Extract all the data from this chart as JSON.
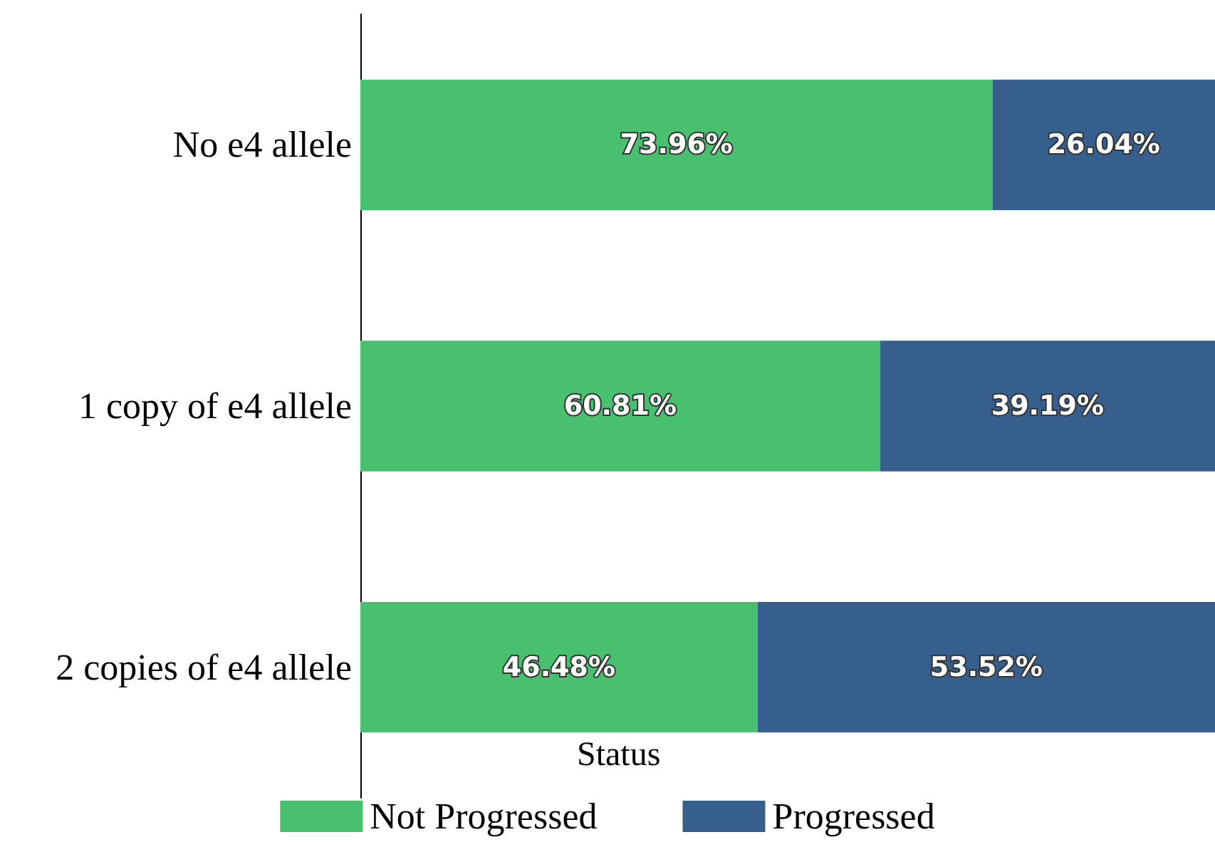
{
  "chart_data": {
    "type": "bar",
    "orientation": "horizontal",
    "stacked": true,
    "categories": [
      "No e4 allele",
      "1 copy of e4 allele",
      "2 copies of e4 allele"
    ],
    "xlim": [
      0,
      100
    ],
    "tick_labels": "y",
    "grid": false,
    "legend": "bottom",
    "legend_title": "Status",
    "series": [
      {
        "name": "Not Progressed",
        "color": "#48c06f",
        "values": [
          73.96,
          60.81,
          46.48
        ],
        "value_labels": [
          "73.96%",
          "60.81%",
          "46.48%"
        ]
      },
      {
        "name": "Progressed",
        "color": "#365f8e",
        "values": [
          26.04,
          39.19,
          53.52
        ],
        "value_labels": [
          "26.04%",
          "39.19%",
          "53.52%"
        ]
      }
    ]
  }
}
